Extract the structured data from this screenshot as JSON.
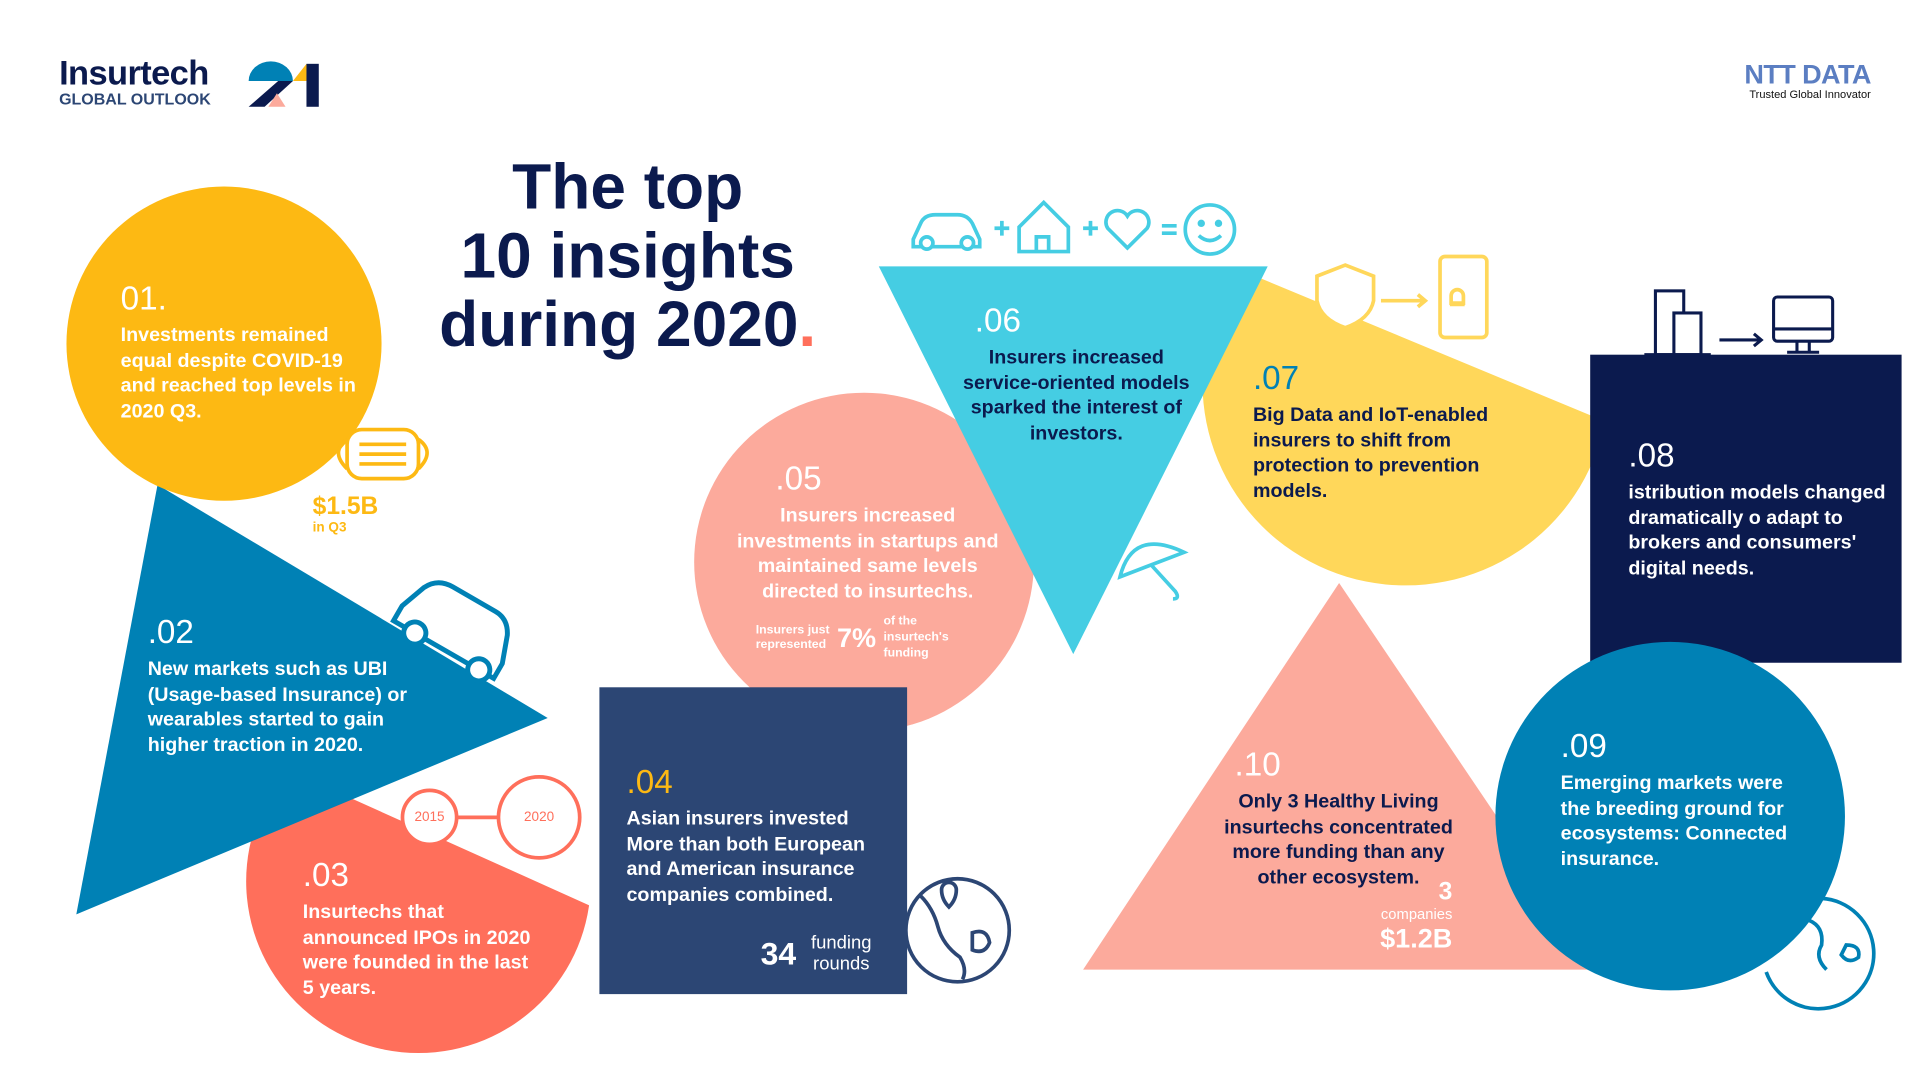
{
  "logo": {
    "brand": "Insurtech",
    "sub": "GLOBAL OUTLOOK",
    "year_mark": "21"
  },
  "partner": {
    "brand": "NTT DATA",
    "tagline": "Trusted Global Innovator"
  },
  "title": {
    "line1": "The top",
    "line2": "10 insights",
    "line3": "during 2020",
    "dot": "."
  },
  "colors": {
    "navy": "#0B1A4E",
    "yellow": "#FDB913",
    "blue": "#0081B5",
    "coral": "#FF6F5B",
    "salmon": "#FCAA9C",
    "cyan": "#45CDE3",
    "light_yellow": "#FFD75A",
    "slate": "#2C4674"
  },
  "insights": [
    {
      "num": "01.",
      "text": "Investments remained equal despite COVID-19 and reached top levels in 2020 Q3.",
      "stat": "$1.5B",
      "stat_note": "in Q3",
      "icon": "face-mask-icon"
    },
    {
      "num": ".02",
      "text": "New markets such as UBI (Usage-based Insurance) or wearables started to gain higher traction in 2020.",
      "icon": "car-icon"
    },
    {
      "num": ".03",
      "text": "Insurtechs that announced IPOs in 2020 were founded in the last 5 years.",
      "timeline": [
        "2015",
        "2020"
      ]
    },
    {
      "num": ".04",
      "text": "Asian insurers invested More than both European and American insurance companies combined.",
      "stat": "34",
      "stat_note1": "funding",
      "stat_note2": "rounds",
      "icon": "globe-asia-icon"
    },
    {
      "num": ".05",
      "text": "Insurers increased investments in startups and maintained same levels directed to insurtechs.",
      "pre1": "Insurers just",
      "pre2": "represented",
      "stat": "7%",
      "post1": "of the",
      "post2": "insurtech's",
      "post3": "funding"
    },
    {
      "num": ".06",
      "text": "Insurers increased service-oriented models sparked the interest of investors.",
      "icon": "car-home-heart-smile-icon"
    },
    {
      "num": ".07",
      "text": "Big Data and IoT-enabled insurers to shift from protection to prevention models.",
      "icon": "shield-to-phone-icon"
    },
    {
      "num": ".08",
      "text": "istribution models changed dramatically o adapt to brokers and consumers' digital needs.",
      "icon": "building-to-computer-icon"
    },
    {
      "num": ".09",
      "text": "Emerging markets were the breeding ground for ecosystems: Connected insurance.",
      "icon": "globe-icon"
    },
    {
      "num": ".10",
      "text": "Only 3 Healthy Living insurtechs concentrated more funding than any other ecosystem.",
      "stat_count": "3",
      "stat_count_note": "companies",
      "stat": "$1.2B"
    }
  ]
}
